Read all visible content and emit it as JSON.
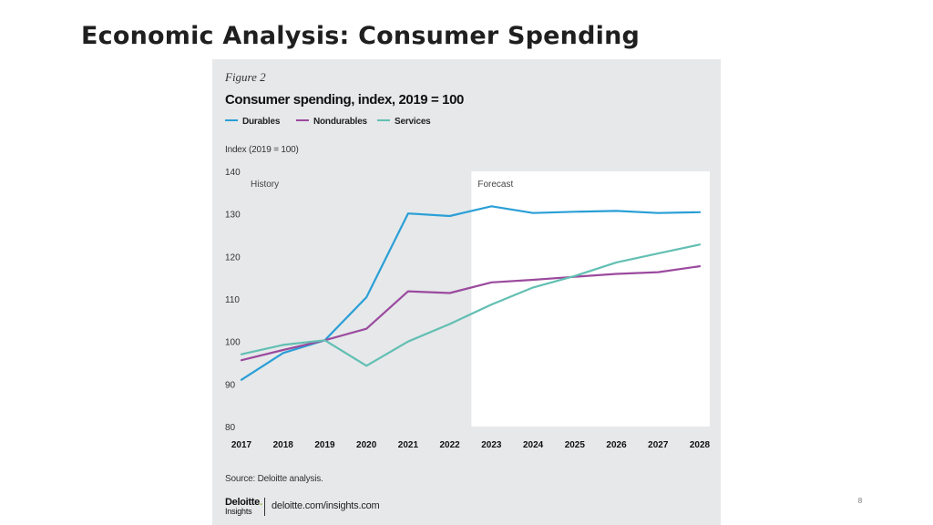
{
  "slide": {
    "title": "Economic Analysis: Consumer Spending",
    "page_number": "8"
  },
  "figure": {
    "label": "Figure 2",
    "source": "Source: Deloitte analysis.",
    "brand_name": "Deloitte",
    "brand_dot": ".",
    "brand_sub": "Insights",
    "brand_url": "deloitte.com/insights.com"
  },
  "chart_data": {
    "type": "line",
    "title": "Consumer spending, index, 2019 = 100",
    "ylabel": "Index (2019 = 100)",
    "xlabel": "",
    "x": [
      "2017",
      "2018",
      "2019",
      "2020",
      "2021",
      "2022",
      "2023",
      "2024",
      "2025",
      "2026",
      "2027",
      "2028"
    ],
    "ylim": [
      80,
      140
    ],
    "yticks": [
      80,
      90,
      100,
      110,
      120,
      130,
      140
    ],
    "legend_position": "top-left",
    "regions": [
      {
        "label": "History",
        "from": "2017",
        "to": "2022"
      },
      {
        "label": "Forecast",
        "from": "2023",
        "to": "2028"
      }
    ],
    "series": [
      {
        "name": "Durables",
        "color": "#2a9fd6",
        "values": [
          91,
          97.3,
          100.3,
          110.4,
          130.1,
          129.5,
          131.8,
          130.2,
          130.5,
          130.7,
          130.2,
          130.4
        ]
      },
      {
        "name": "Nondurables",
        "color": "#9b4a9e",
        "values": [
          95.6,
          98,
          100.3,
          103,
          111.8,
          111.4,
          113.9,
          114.5,
          115.2,
          115.9,
          116.3,
          117.7
        ]
      },
      {
        "name": "Services",
        "color": "#62bfb3",
        "values": [
          97,
          99.2,
          100.3,
          94.3,
          100,
          104.1,
          108.7,
          112.7,
          115.4,
          118.6,
          120.7,
          122.8
        ]
      }
    ]
  }
}
